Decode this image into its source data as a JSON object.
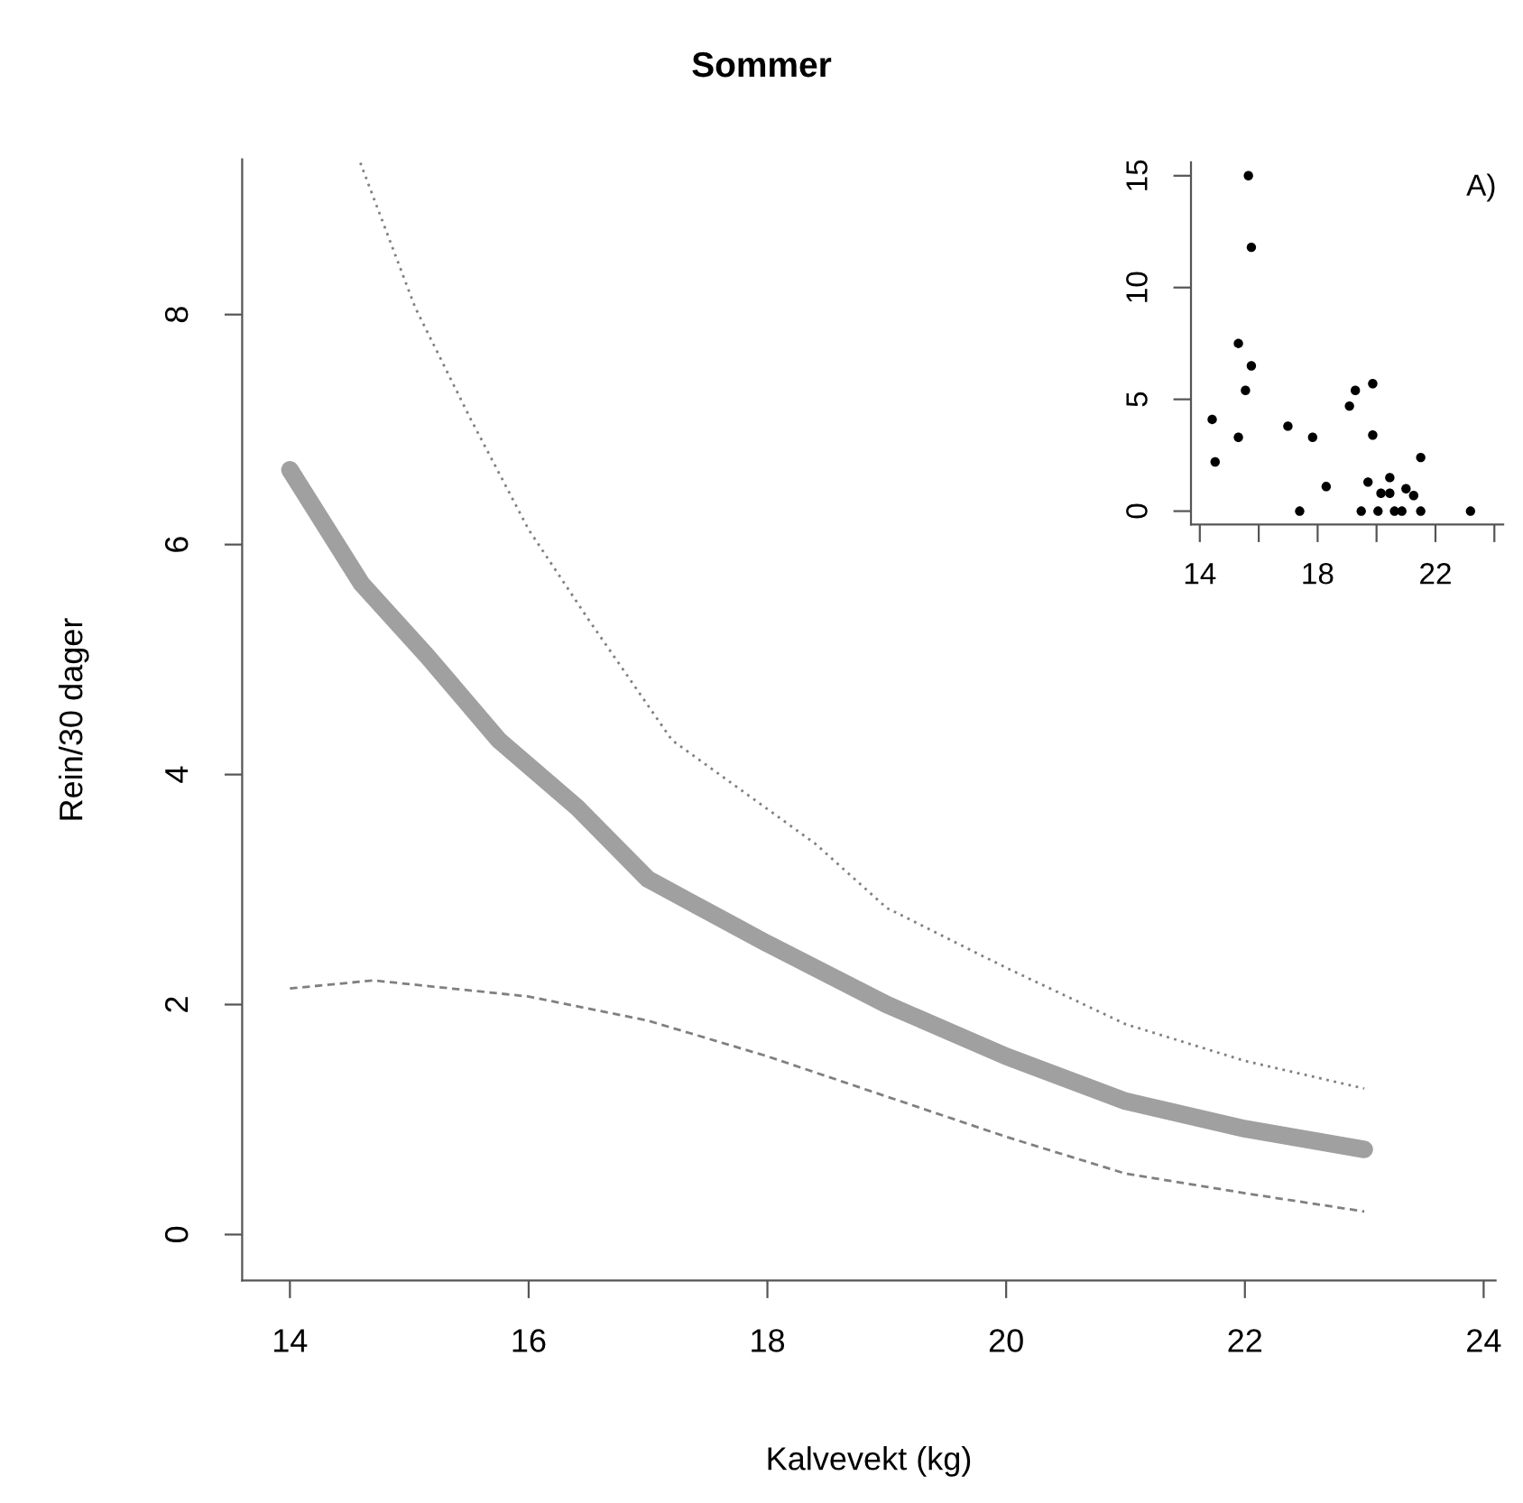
{
  "chart_data": [
    {
      "type": "line",
      "title": "Sommer",
      "xlabel": "Kalvevekt (kg)",
      "ylabel": "Rein/30 dager",
      "xlim": [
        13.6,
        24.1
      ],
      "ylim": [
        -0.4,
        9.35
      ],
      "xticks": [
        14,
        16,
        18,
        20,
        22,
        24
      ],
      "yticks": [
        0,
        2,
        4,
        6,
        8
      ],
      "grid": false,
      "legend": false,
      "marker": "none",
      "series": [
        {
          "color": "#a0a0a0",
          "line_style": "solid",
          "x": [
            14,
            14.6,
            15.15,
            15.75,
            16.4,
            17,
            18,
            19,
            20,
            21,
            22,
            23
          ],
          "values": [
            6.65,
            5.66,
            5.03,
            4.3,
            3.72,
            3.09,
            2.53,
            2.0,
            1.55,
            1.16,
            0.92,
            0.74
          ]
        },
        {
          "color": "#808080",
          "line_style": "dotted",
          "x": [
            14.59,
            15.05,
            15.5,
            16,
            16.5,
            17.2,
            18.4,
            19,
            20,
            21,
            22,
            23
          ],
          "values": [
            9.32,
            8.06,
            7.12,
            6.13,
            5.35,
            4.3,
            3.4,
            2.84,
            2.32,
            1.83,
            1.51,
            1.27
          ]
        },
        {
          "color": "#808080",
          "line_style": "dashed",
          "x": [
            14,
            14.7,
            16,
            17,
            18,
            19,
            20,
            21,
            22,
            23
          ],
          "values": [
            2.14,
            2.21,
            2.07,
            1.86,
            1.55,
            1.2,
            0.85,
            0.53,
            0.36,
            0.2
          ]
        }
      ]
    },
    {
      "type": "scatter",
      "annotations": [
        "A)"
      ],
      "xlim": [
        13.7,
        24.3
      ],
      "ylim": [
        -0.6,
        15.6
      ],
      "xticks": [
        14,
        {
          "value": 16,
          "label": null
        },
        18,
        {
          "value": 20,
          "label": null
        },
        22,
        {
          "value": 24,
          "label": null
        }
      ],
      "yticks": [
        0,
        5,
        10,
        15
      ],
      "grid": false,
      "legend": false,
      "marker": "circle",
      "series": [
        {
          "color": "#000000",
          "x": [
            14.42,
            14.52,
            15.31,
            15.31,
            15.55,
            15.65,
            15.75,
            15.75,
            16.99,
            17.39,
            17.83,
            18.29,
            19.08,
            19.28,
            19.48,
            19.71,
            19.87,
            19.87,
            20.05,
            20.15,
            20.45,
            20.45,
            20.61,
            20.86,
            21.0,
            21.26,
            21.5,
            21.5,
            23.19
          ],
          "values": [
            4.1,
            2.2,
            3.3,
            7.5,
            5.4,
            15.0,
            11.8,
            6.5,
            3.8,
            0,
            3.3,
            1.1,
            4.7,
            5.4,
            0,
            1.3,
            5.7,
            3.4,
            0,
            0.8,
            1.5,
            0.8,
            0,
            0,
            1.0,
            0.7,
            2.4,
            0,
            0
          ]
        }
      ]
    }
  ]
}
